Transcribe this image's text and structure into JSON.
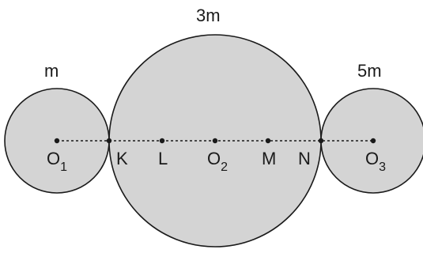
{
  "masses": {
    "left": "m",
    "middle": "3m",
    "right": "5m"
  },
  "points": {
    "o1": {
      "main": "O",
      "sub": "1"
    },
    "k": "K",
    "l": "L",
    "o2": {
      "main": "O",
      "sub": "2"
    },
    "m": "M",
    "n": "N",
    "o3": {
      "main": "O",
      "sub": "3"
    }
  },
  "colors": {
    "circle_fill": "#d4d4d4",
    "outline": "#1a1a1a"
  }
}
